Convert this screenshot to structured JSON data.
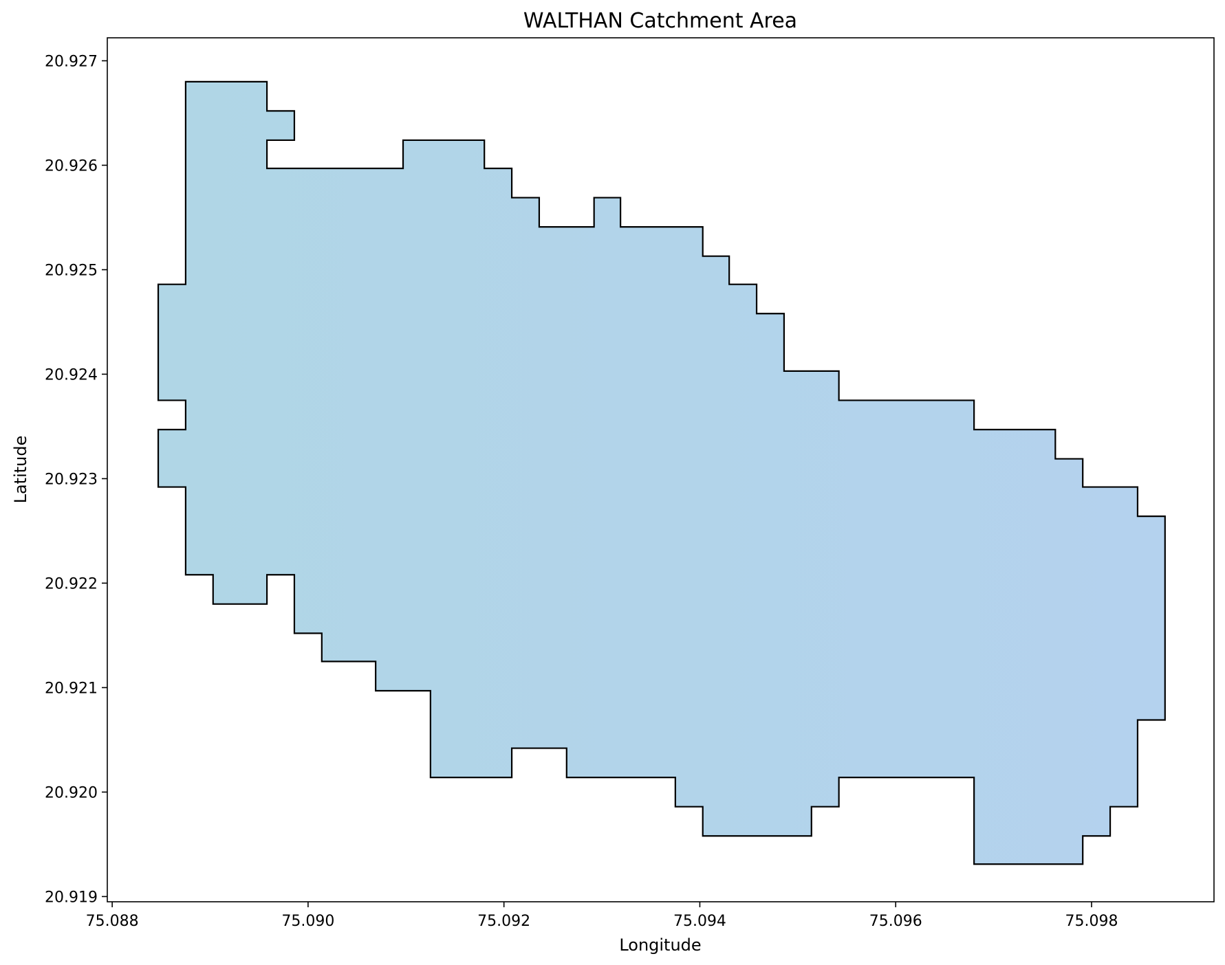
{
  "chart_data": {
    "type": "map",
    "title": "WALTHAN Catchment Area",
    "xlabel": "Longitude",
    "ylabel": "Latitude",
    "xlim": [
      75.08795,
      75.09925
    ],
    "ylim": [
      20.91895,
      20.92722
    ],
    "x_ticks": [
      75.088,
      75.09,
      75.092,
      75.094,
      75.096,
      75.098
    ],
    "x_tick_labels": [
      "75.088",
      "75.090",
      "75.092",
      "75.094",
      "75.096",
      "75.098"
    ],
    "y_ticks": [
      20.919,
      20.92,
      20.921,
      20.922,
      20.923,
      20.924,
      20.925,
      20.926,
      20.927
    ],
    "y_tick_labels": [
      "20.919",
      "20.920",
      "20.921",
      "20.922",
      "20.923",
      "20.924",
      "20.925",
      "20.926",
      "20.927"
    ],
    "grid": false,
    "legend": "none",
    "colors": {
      "fill": "#b0d6e6",
      "fill_right": "#b4d2ee",
      "edge": "#000000"
    },
    "polygon": {
      "name": "WALTHAN",
      "coordinates": [
        [
          75.08875,
          20.9268
        ],
        [
          75.08958,
          20.9268
        ],
        [
          75.08958,
          20.92652
        ],
        [
          75.08986,
          20.92652
        ],
        [
          75.08986,
          20.92624
        ],
        [
          75.08958,
          20.92624
        ],
        [
          75.08958,
          20.92597
        ],
        [
          75.09097,
          20.92597
        ],
        [
          75.09097,
          20.92624
        ],
        [
          75.0918,
          20.92624
        ],
        [
          75.0918,
          20.92597
        ],
        [
          75.09208,
          20.92597
        ],
        [
          75.09208,
          20.92569
        ],
        [
          75.09236,
          20.92569
        ],
        [
          75.09236,
          20.92541
        ],
        [
          75.09292,
          20.92541
        ],
        [
          75.09292,
          20.92569
        ],
        [
          75.09319,
          20.92569
        ],
        [
          75.09319,
          20.92541
        ],
        [
          75.09403,
          20.92541
        ],
        [
          75.09403,
          20.92513
        ],
        [
          75.0943,
          20.92513
        ],
        [
          75.0943,
          20.92486
        ],
        [
          75.09458,
          20.92486
        ],
        [
          75.09458,
          20.92458
        ],
        [
          75.09486,
          20.92458
        ],
        [
          75.09486,
          20.92403
        ],
        [
          75.09542,
          20.92403
        ],
        [
          75.09542,
          20.92375
        ],
        [
          75.0968,
          20.92375
        ],
        [
          75.0968,
          20.92347
        ],
        [
          75.09763,
          20.92347
        ],
        [
          75.09763,
          20.92319
        ],
        [
          75.09791,
          20.92319
        ],
        [
          75.09791,
          20.92292
        ],
        [
          75.09847,
          20.92292
        ],
        [
          75.09847,
          20.92264
        ],
        [
          75.09875,
          20.92264
        ],
        [
          75.09875,
          20.92069
        ],
        [
          75.09847,
          20.92069
        ],
        [
          75.09847,
          20.91986
        ],
        [
          75.09819,
          20.91986
        ],
        [
          75.09819,
          20.91958
        ],
        [
          75.09791,
          20.91958
        ],
        [
          75.09791,
          20.91931
        ],
        [
          75.0968,
          20.91931
        ],
        [
          75.0968,
          20.92014
        ],
        [
          75.09542,
          20.92014
        ],
        [
          75.09542,
          20.91986
        ],
        [
          75.09514,
          20.91986
        ],
        [
          75.09514,
          20.91958
        ],
        [
          75.09403,
          20.91958
        ],
        [
          75.09403,
          20.91986
        ],
        [
          75.09375,
          20.91986
        ],
        [
          75.09375,
          20.92014
        ],
        [
          75.09264,
          20.92014
        ],
        [
          75.09264,
          20.92042
        ],
        [
          75.09208,
          20.92042
        ],
        [
          75.09208,
          20.92014
        ],
        [
          75.09125,
          20.92014
        ],
        [
          75.09125,
          20.92097
        ],
        [
          75.09069,
          20.92097
        ],
        [
          75.09069,
          20.92125
        ],
        [
          75.09014,
          20.92125
        ],
        [
          75.09014,
          20.92152
        ],
        [
          75.08986,
          20.92152
        ],
        [
          75.08986,
          20.92208
        ],
        [
          75.08958,
          20.92208
        ],
        [
          75.08958,
          20.9218
        ],
        [
          75.08903,
          20.9218
        ],
        [
          75.08903,
          20.92208
        ],
        [
          75.08875,
          20.92208
        ],
        [
          75.08875,
          20.92292
        ],
        [
          75.08847,
          20.92292
        ],
        [
          75.08847,
          20.92347
        ],
        [
          75.08875,
          20.92347
        ],
        [
          75.08875,
          20.92375
        ],
        [
          75.08847,
          20.92375
        ],
        [
          75.08847,
          20.92486
        ],
        [
          75.08875,
          20.92486
        ],
        [
          75.08875,
          20.9268
        ]
      ]
    }
  }
}
